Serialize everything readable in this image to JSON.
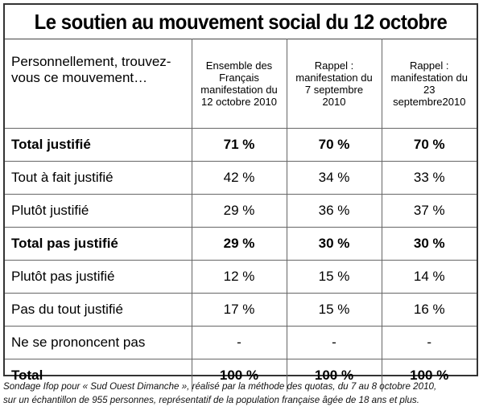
{
  "title": "Le soutien au mouvement social du 12 octobre",
  "header": {
    "question": "Personnellement, trouvez-vous ce mouvement…",
    "columns": [
      "Ensemble des Français manifestation du 12 octobre 2010",
      "Rappel : manifestation du 7 septembre 2010",
      "Rappel : manifestation du 23 septembre2010"
    ]
  },
  "rows": [
    {
      "label": "Total justifié",
      "values": [
        "71 %",
        "70 %",
        "70 %"
      ],
      "bold": true
    },
    {
      "label": "Tout à fait justifié",
      "values": [
        "42 %",
        "34 %",
        "33 %"
      ],
      "bold": false
    },
    {
      "label": "Plutôt justifié",
      "values": [
        "29 %",
        "36 %",
        "37 %"
      ],
      "bold": false
    },
    {
      "label": "Total pas justifié",
      "values": [
        "29 %",
        "30 %",
        "30 %"
      ],
      "bold": true
    },
    {
      "label": "Plutôt pas justifié",
      "values": [
        "12 %",
        "15 %",
        "14 %"
      ],
      "bold": false
    },
    {
      "label": "Pas du tout justifié",
      "values": [
        "17 %",
        "15 %",
        "16 %"
      ],
      "bold": false
    },
    {
      "label": "Ne se prononcent pas",
      "values": [
        "-",
        "-",
        "-"
      ],
      "bold": false
    },
    {
      "label": "Total",
      "values": [
        "100 %",
        "100 %",
        "100 %"
      ],
      "bold": true
    }
  ],
  "source": {
    "line1": "Sondage Ifop pour « Sud Ouest Dimanche », réalisé par la méthode des quotas, du 7 au 8 octobre 2010,",
    "line2": "sur un échantillon de 955 personnes, représentatif de la population française âgée de 18 ans et plus."
  }
}
